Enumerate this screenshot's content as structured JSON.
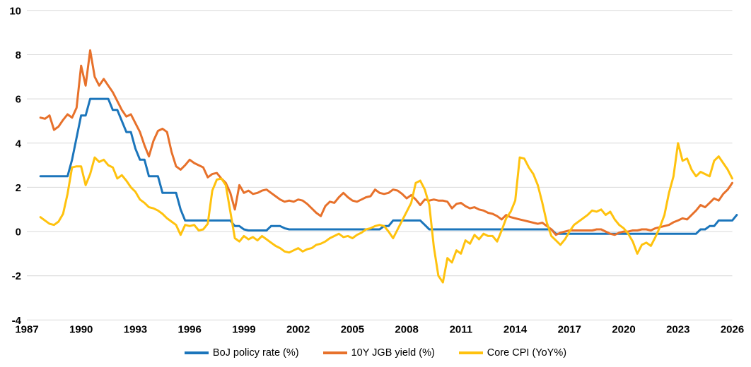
{
  "chart_data": {
    "type": "line",
    "title": "",
    "xlabel": "",
    "ylabel": "",
    "grid": "horizontal",
    "legend_position": "bottom",
    "background_color": "#ffffff",
    "gridline_color": "#d9d9d9",
    "axis_text_color": "#000000",
    "x_axis": {
      "min": 1987,
      "max": 2026,
      "ticks": [
        1987,
        1990,
        1993,
        1996,
        1999,
        2002,
        2005,
        2008,
        2011,
        2014,
        2017,
        2020,
        2023,
        2026
      ]
    },
    "y_axis": {
      "min": -4,
      "max": 10,
      "ticks": [
        -4,
        -2,
        0,
        2,
        4,
        6,
        8,
        10
      ]
    },
    "x_start": 1987.75,
    "x_step": 0.25,
    "series": [
      {
        "name": "BoJ policy rate (%)",
        "color": "#1b75bb",
        "values": [
          2.5,
          2.5,
          2.5,
          2.5,
          2.5,
          2.5,
          2.5,
          3.25,
          4.25,
          5.25,
          5.25,
          6,
          6,
          6,
          6,
          6,
          5.5,
          5.5,
          5,
          4.5,
          4.5,
          3.75,
          3.25,
          3.25,
          2.5,
          2.5,
          2.5,
          1.75,
          1.75,
          1.75,
          1.75,
          1,
          0.5,
          0.5,
          0.5,
          0.5,
          0.5,
          0.5,
          0.5,
          0.5,
          0.5,
          0.5,
          0.5,
          0.25,
          0.25,
          0.1,
          0.05,
          0.05,
          0.05,
          0.05,
          0.05,
          0.25,
          0.25,
          0.25,
          0.15,
          0.1,
          0.1,
          0.1,
          0.1,
          0.1,
          0.1,
          0.1,
          0.1,
          0.1,
          0.1,
          0.1,
          0.1,
          0.1,
          0.1,
          0.1,
          0.1,
          0.1,
          0.1,
          0.1,
          0.1,
          0.1,
          0.25,
          0.25,
          0.5,
          0.5,
          0.5,
          0.5,
          0.5,
          0.5,
          0.5,
          0.3,
          0.1,
          0.1,
          0.1,
          0.1,
          0.1,
          0.1,
          0.1,
          0.1,
          0.1,
          0.1,
          0.1,
          0.1,
          0.1,
          0.1,
          0.1,
          0.1,
          0.1,
          0.1,
          0.1,
          0.1,
          0.1,
          0.1,
          0.1,
          0.1,
          0.1,
          0.1,
          0.1,
          0.1,
          -0.1,
          -0.1,
          -0.1,
          -0.1,
          -0.1,
          -0.1,
          -0.1,
          -0.1,
          -0.1,
          -0.1,
          -0.1,
          -0.1,
          -0.1,
          -0.1,
          -0.1,
          -0.1,
          -0.1,
          -0.1,
          -0.1,
          -0.1,
          -0.1,
          -0.1,
          -0.1,
          -0.1,
          -0.1,
          -0.1,
          -0.1,
          -0.1,
          -0.1,
          -0.1,
          -0.1,
          -0.1,
          0.1,
          0.1,
          0.25,
          0.25,
          0.5,
          0.5,
          0.5,
          0.5,
          0.75
        ]
      },
      {
        "name": "10Y JGB yield (%)",
        "color": "#e7712b",
        "values": [
          5.15,
          5.1,
          5.25,
          4.6,
          4.75,
          5.05,
          5.3,
          5.15,
          5.6,
          7.5,
          6.6,
          8.2,
          7,
          6.6,
          6.9,
          6.6,
          6.3,
          5.9,
          5.5,
          5.2,
          5.3,
          4.9,
          4.5,
          3.9,
          3.4,
          4.1,
          4.55,
          4.65,
          4.5,
          3.6,
          2.95,
          2.8,
          3,
          3.25,
          3.1,
          3,
          2.9,
          2.45,
          2.6,
          2.65,
          2.4,
          2.2,
          1.75,
          1,
          2.1,
          1.75,
          1.85,
          1.7,
          1.75,
          1.85,
          1.9,
          1.75,
          1.6,
          1.45,
          1.35,
          1.4,
          1.35,
          1.45,
          1.4,
          1.25,
          1.05,
          0.85,
          0.7,
          1.15,
          1.35,
          1.3,
          1.55,
          1.75,
          1.55,
          1.4,
          1.35,
          1.45,
          1.55,
          1.6,
          1.9,
          1.75,
          1.7,
          1.75,
          1.9,
          1.85,
          1.7,
          1.5,
          1.65,
          1.45,
          1.2,
          1.45,
          1.4,
          1.45,
          1.4,
          1.4,
          1.35,
          1.05,
          1.25,
          1.3,
          1.15,
          1.05,
          1.1,
          1,
          0.95,
          0.85,
          0.8,
          0.7,
          0.55,
          0.75,
          0.65,
          0.6,
          0.55,
          0.5,
          0.45,
          0.4,
          0.35,
          0.4,
          0.25,
          0.1,
          -0.15,
          -0.05,
          0,
          0.05,
          0.05,
          0.05,
          0.05,
          0.05,
          0.05,
          0.1,
          0.1,
          0,
          -0.1,
          -0.15,
          -0.05,
          0,
          0,
          0.05,
          0.05,
          0.1,
          0.1,
          0.05,
          0.15,
          0.2,
          0.25,
          0.3,
          0.42,
          0.5,
          0.6,
          0.55,
          0.75,
          0.95,
          1.2,
          1.1,
          1.3,
          1.5,
          1.4,
          1.7,
          1.9,
          2.2
        ]
      },
      {
        "name": "Core CPI (YoY%)",
        "color": "#ffc20e",
        "values": [
          0.65,
          0.5,
          0.35,
          0.3,
          0.45,
          0.8,
          1.7,
          2.9,
          2.95,
          2.95,
          2.1,
          2.6,
          3.35,
          3.15,
          3.25,
          3,
          2.9,
          2.4,
          2.55,
          2.3,
          2,
          1.8,
          1.45,
          1.3,
          1.1,
          1.05,
          0.95,
          0.8,
          0.6,
          0.45,
          0.3,
          -0.15,
          0.3,
          0.25,
          0.3,
          0.05,
          0.1,
          0.35,
          1.85,
          2.35,
          2.4,
          2.1,
          0.9,
          -0.3,
          -0.45,
          -0.2,
          -0.35,
          -0.25,
          -0.4,
          -0.2,
          -0.35,
          -0.5,
          -0.65,
          -0.75,
          -0.9,
          -0.95,
          -0.85,
          -0.75,
          -0.9,
          -0.8,
          -0.75,
          -0.6,
          -0.55,
          -0.45,
          -0.3,
          -0.2,
          -0.1,
          -0.25,
          -0.2,
          -0.3,
          -0.15,
          -0.05,
          0.1,
          0.15,
          0.25,
          0.3,
          0.25,
          0,
          -0.3,
          0.1,
          0.5,
          0.9,
          1.3,
          2.2,
          2.3,
          1.9,
          1.2,
          -0.7,
          -2,
          -2.3,
          -1.2,
          -1.4,
          -0.85,
          -1,
          -0.4,
          -0.55,
          -0.15,
          -0.35,
          -0.1,
          -0.2,
          -0.2,
          -0.45,
          0.05,
          0.6,
          0.9,
          1.4,
          3.35,
          3.3,
          2.9,
          2.6,
          2.1,
          1.3,
          0.4,
          -0.2,
          -0.4,
          -0.6,
          -0.35,
          0,
          0.3,
          0.45,
          0.6,
          0.75,
          0.95,
          0.9,
          1,
          0.75,
          0.9,
          0.55,
          0.3,
          0.15,
          -0.1,
          -0.45,
          -1,
          -0.6,
          -0.5,
          -0.65,
          -0.25,
          0.2,
          0.75,
          1.75,
          2.5,
          4,
          3.2,
          3.3,
          2.8,
          2.5,
          2.7,
          2.6,
          2.5,
          3.2,
          3.4,
          3.1,
          2.8,
          2.4
        ]
      }
    ]
  }
}
